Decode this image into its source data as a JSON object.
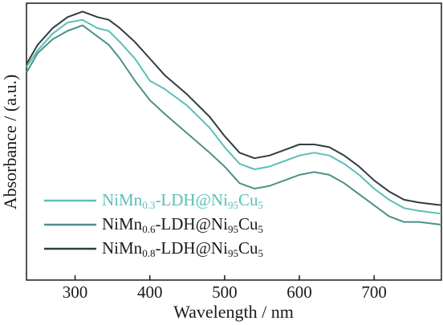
{
  "chart_data": {
    "type": "line",
    "xlabel": "Wavelength / nm",
    "ylabel": "Absorbance / (a.u.)",
    "xlim": [
      235,
      790
    ],
    "ylim": [
      0,
      1
    ],
    "x_ticks": [
      300,
      400,
      500,
      600,
      700
    ],
    "y_ticks_visible": false,
    "grid": false,
    "legend_position": "lower-left",
    "series": [
      {
        "name": "NiMn0.3-LDH@Ni95Cu5",
        "legend": {
          "base": "NiMn",
          "sub1": "0.3",
          "mid": "-LDH@Ni",
          "sub2": "95",
          "end": "Cu",
          "sub3": "5"
        },
        "color": "#5bbfb7",
        "x": [
          235,
          250,
          270,
          290,
          310,
          330,
          345,
          360,
          380,
          400,
          420,
          450,
          480,
          500,
          520,
          540,
          560,
          580,
          600,
          620,
          640,
          660,
          680,
          700,
          720,
          740,
          760,
          790
        ],
        "y": [
          0.77,
          0.83,
          0.89,
          0.93,
          0.94,
          0.91,
          0.9,
          0.86,
          0.8,
          0.72,
          0.69,
          0.63,
          0.55,
          0.48,
          0.42,
          0.4,
          0.41,
          0.43,
          0.45,
          0.46,
          0.45,
          0.42,
          0.38,
          0.33,
          0.29,
          0.26,
          0.25,
          0.24
        ]
      },
      {
        "name": "NiMn0.6-LDH@Ni95Cu5",
        "legend": {
          "base": "NiMn",
          "sub1": "0.6",
          "mid": "-LDH@Ni",
          "sub2": "95",
          "end": "Cu",
          "sub3": "5"
        },
        "color": "#4e8f88",
        "x": [
          235,
          250,
          270,
          290,
          310,
          330,
          345,
          360,
          380,
          400,
          420,
          450,
          480,
          500,
          520,
          540,
          560,
          580,
          600,
          620,
          640,
          660,
          680,
          700,
          720,
          740,
          760,
          790
        ],
        "y": [
          0.75,
          0.82,
          0.87,
          0.9,
          0.92,
          0.88,
          0.85,
          0.8,
          0.72,
          0.65,
          0.6,
          0.53,
          0.46,
          0.41,
          0.35,
          0.33,
          0.34,
          0.36,
          0.38,
          0.39,
          0.38,
          0.35,
          0.31,
          0.27,
          0.23,
          0.21,
          0.21,
          0.2
        ]
      },
      {
        "name": "NiMn0.8-LDH@Ni95Cu5",
        "legend": {
          "base": "NiMn",
          "sub1": "0.8",
          "mid": "-LDH@Ni",
          "sub2": "95",
          "end": "Cu",
          "sub3": "5"
        },
        "color": "#2f3f3d",
        "x": [
          235,
          250,
          270,
          290,
          310,
          330,
          345,
          360,
          380,
          400,
          420,
          450,
          480,
          500,
          520,
          540,
          560,
          580,
          600,
          620,
          640,
          660,
          680,
          700,
          720,
          740,
          760,
          790
        ],
        "y": [
          0.78,
          0.85,
          0.91,
          0.95,
          0.97,
          0.95,
          0.94,
          0.91,
          0.86,
          0.8,
          0.74,
          0.67,
          0.59,
          0.52,
          0.46,
          0.44,
          0.45,
          0.47,
          0.49,
          0.49,
          0.48,
          0.45,
          0.41,
          0.36,
          0.32,
          0.29,
          0.28,
          0.27
        ]
      }
    ]
  }
}
